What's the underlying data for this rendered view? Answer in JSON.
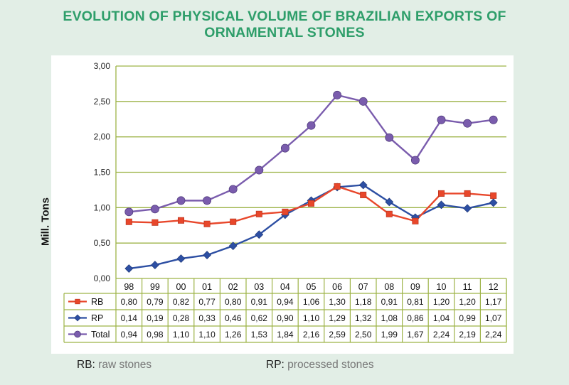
{
  "title_lines": [
    "EVOLUTION OF PHYSICAL VOLUME OF BRAZILIAN EXPORTS OF",
    "ORNAMENTAL STONES"
  ],
  "notes": [
    {
      "key": "RB",
      "sep": ":",
      "text": "raw stones"
    },
    {
      "key": "RP",
      "sep": ":",
      "text": "processed stones"
    }
  ],
  "chart_data": {
    "type": "line",
    "title": "EVOLUTION OF PHYSICAL VOLUME OF BRAZILIAN EXPORTS OF ORNAMENTAL STONES",
    "ylabel": "Mill. Tons",
    "xlabel": "",
    "categories": [
      "98",
      "99",
      "00",
      "01",
      "02",
      "03",
      "04",
      "05",
      "06",
      "07",
      "08",
      "09",
      "10",
      "11",
      "12"
    ],
    "ylim": [
      0,
      3
    ],
    "yticks": [
      "0,00",
      "0,50",
      "1,00",
      "1,50",
      "2,00",
      "2,50",
      "3,00"
    ],
    "grid": true,
    "legend": "data table below chart",
    "series": [
      {
        "name": "RB",
        "color": "#e8472b",
        "marker": "square",
        "values": [
          0.8,
          0.79,
          0.82,
          0.77,
          0.8,
          0.91,
          0.94,
          1.06,
          1.3,
          1.18,
          0.91,
          0.81,
          1.2,
          1.2,
          1.17
        ],
        "labels": [
          "0,80",
          "0,79",
          "0,82",
          "0,77",
          "0,80",
          "0,91",
          "0,94",
          "1,06",
          "1,30",
          "1,18",
          "0,91",
          "0,81",
          "1,20",
          "1,20",
          "1,17"
        ]
      },
      {
        "name": "RP",
        "color": "#2d4fa3",
        "marker": "diamond",
        "values": [
          0.14,
          0.19,
          0.28,
          0.33,
          0.46,
          0.62,
          0.9,
          1.1,
          1.29,
          1.32,
          1.08,
          0.86,
          1.04,
          0.99,
          1.07
        ],
        "labels": [
          "0,14",
          "0,19",
          "0,28",
          "0,33",
          "0,46",
          "0,62",
          "0,90",
          "1,10",
          "1,29",
          "1,32",
          "1,08",
          "0,86",
          "1,04",
          "0,99",
          "1,07"
        ]
      },
      {
        "name": "Total",
        "color": "#7a5cad",
        "marker": "circle",
        "values": [
          0.94,
          0.98,
          1.1,
          1.1,
          1.26,
          1.53,
          1.84,
          2.16,
          2.59,
          2.5,
          1.99,
          1.67,
          2.24,
          2.19,
          2.24
        ],
        "labels": [
          "0,94",
          "0,98",
          "1,10",
          "1,10",
          "1,26",
          "1,53",
          "1,84",
          "2,16",
          "2,59",
          "2,50",
          "1,99",
          "1,67",
          "2,24",
          "2,19",
          "2,24"
        ]
      }
    ]
  }
}
